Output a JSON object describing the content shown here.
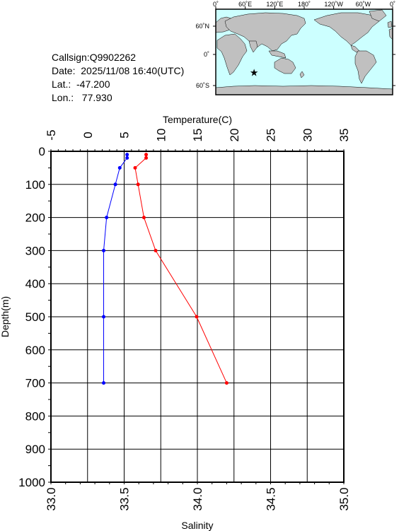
{
  "station": {
    "callsign": "Callsign:Q9902262",
    "date": "Date:  2025/11/08 16:40(UTC)",
    "lat": "Lat.:  -47.200",
    "lon": "Lon.:   77.930"
  },
  "map": {
    "lon_labels": [
      "0˚",
      "60˚E",
      "120˚E",
      "180˚",
      "120˚W",
      "60˚W",
      "0˚"
    ],
    "lat_labels": [
      "60˚N",
      "0˚",
      "60˚S"
    ],
    "ocean_color": "#ccffff",
    "land_color": "#c0c0c0",
    "marker_color": "#ff0000",
    "marker_lat": -47.2,
    "marker_lon": 77.93
  },
  "chart_data": {
    "type": "line",
    "title": "",
    "top_axis": {
      "label": "Temperature(C)",
      "range": [
        -5,
        35
      ],
      "ticks": [
        "-5",
        "0",
        "5",
        "10",
        "15",
        "20",
        "25",
        "30",
        "35"
      ]
    },
    "bottom_axis": {
      "label": "Salinity",
      "range": [
        33.0,
        35.0
      ],
      "ticks": [
        "33.0",
        "33.5",
        "34.0",
        "34.5",
        "35.0"
      ]
    },
    "y_axis": {
      "label": "Depth(m)",
      "range": [
        0,
        1000
      ],
      "inverted": true,
      "ticks": [
        "0",
        "100",
        "200",
        "300",
        "400",
        "500",
        "600",
        "700",
        "800",
        "900",
        "1000"
      ]
    },
    "grid": true,
    "series": [
      {
        "axis": "temperature",
        "color": "#ff0000",
        "points": [
          {
            "x": 8.0,
            "y": 10
          },
          {
            "x": 8.0,
            "y": 20
          },
          {
            "x": 6.5,
            "y": 50
          },
          {
            "x": 6.9,
            "y": 100
          },
          {
            "x": 7.7,
            "y": 200
          },
          {
            "x": 9.3,
            "y": 300
          },
          {
            "x": 14.9,
            "y": 500
          },
          {
            "x": 19.0,
            "y": 700
          }
        ]
      },
      {
        "axis": "salinity",
        "color": "#0000ff",
        "points": [
          {
            "x": 33.52,
            "y": 10
          },
          {
            "x": 33.52,
            "y": 20
          },
          {
            "x": 33.47,
            "y": 50
          },
          {
            "x": 33.44,
            "y": 100
          },
          {
            "x": 33.38,
            "y": 200
          },
          {
            "x": 33.36,
            "y": 300
          },
          {
            "x": 33.36,
            "y": 500
          },
          {
            "x": 33.36,
            "y": 700
          }
        ]
      }
    ]
  }
}
